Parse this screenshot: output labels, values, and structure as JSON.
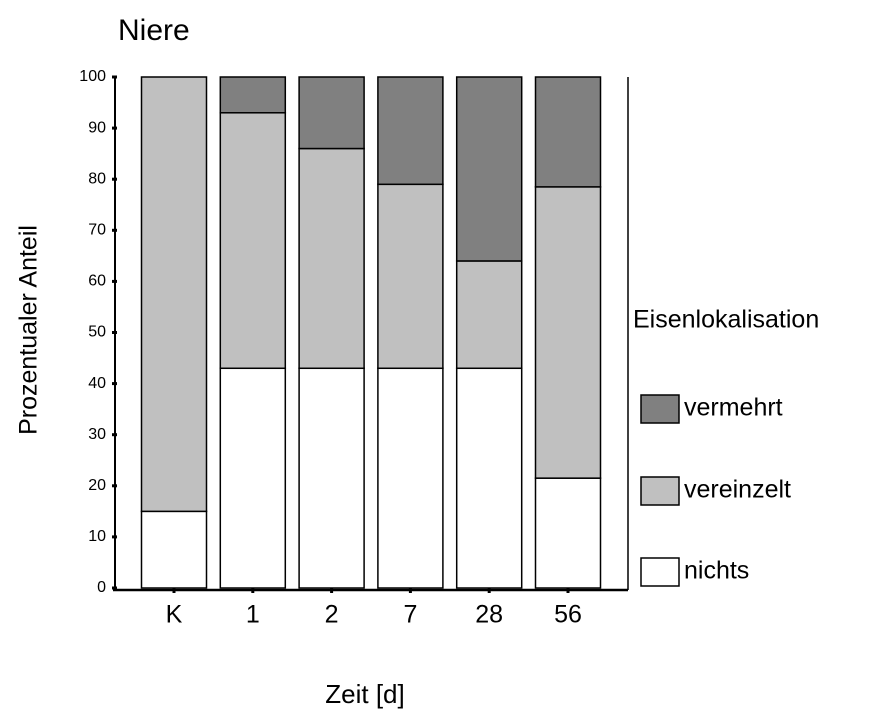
{
  "chart_data": {
    "type": "bar",
    "stacked": true,
    "title": "Niere",
    "xlabel": "Zeit [d]",
    "ylabel": "Prozentualer Anteil",
    "legend_title": "Eisenlokalisation",
    "legend": "right",
    "categories": [
      "K",
      "1",
      "2",
      "7",
      "28",
      "56"
    ],
    "series": [
      {
        "name": "nichts",
        "color": "#ffffff",
        "values": [
          15,
          43,
          43,
          43,
          43,
          21.5
        ]
      },
      {
        "name": "vereinzelt",
        "color": "#c0c0c0",
        "values": [
          85,
          50,
          43,
          36,
          21,
          57
        ]
      },
      {
        "name": "vermehrt",
        "color": "#808080",
        "values": [
          0,
          7,
          14,
          21,
          36,
          21.5
        ]
      }
    ],
    "ylim": [
      0,
      100
    ],
    "yticks": [
      0,
      10,
      20,
      30,
      40,
      50,
      60,
      70,
      80,
      90,
      100
    ]
  }
}
